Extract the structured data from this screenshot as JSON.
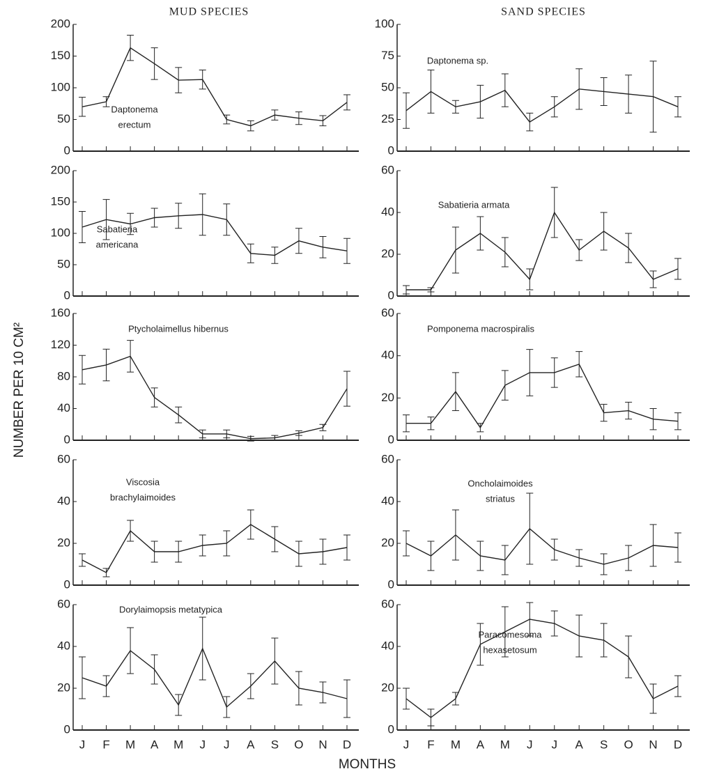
{
  "column_titles": [
    "MUD SPECIES",
    "SAND SPECIES"
  ],
  "y_label": "NUMBER PER 10 CM²",
  "x_label": "MONTHS",
  "chart_data": [
    {
      "type": "line",
      "annotation": [
        "Daptonema",
        "erectum"
      ],
      "color": "#222",
      "categories": [
        null,
        null,
        null,
        null,
        null,
        null,
        null,
        null,
        null,
        null,
        null,
        null
      ],
      "values": [
        70,
        78,
        163,
        138,
        112,
        113,
        50,
        40,
        57,
        52,
        48,
        77
      ],
      "errors": [
        15,
        8,
        20,
        25,
        20,
        15,
        7,
        8,
        8,
        10,
        8,
        12
      ],
      "ylim": [
        0,
        200
      ],
      "yticks": [
        0,
        50,
        100,
        150,
        200
      ]
    },
    {
      "type": "line",
      "annotation": [
        "Sabatieria",
        "americana"
      ],
      "color": "#222",
      "categories": [
        null,
        null,
        null,
        null,
        null,
        null,
        null,
        null,
        null,
        null,
        null,
        null
      ],
      "values": [
        110,
        122,
        115,
        125,
        128,
        130,
        122,
        68,
        65,
        88,
        78,
        72
      ],
      "errors": [
        25,
        32,
        17,
        15,
        20,
        33,
        25,
        15,
        13,
        20,
        17,
        20
      ],
      "ylim": [
        0,
        200
      ],
      "yticks": [
        0,
        50,
        100,
        150,
        200
      ]
    },
    {
      "type": "line",
      "annotation": [
        "Ptycholaimellus hibernus"
      ],
      "color": "#222",
      "categories": [
        null,
        null,
        null,
        null,
        null,
        null,
        null,
        null,
        null,
        null,
        null,
        null
      ],
      "values": [
        89,
        95,
        106,
        54,
        32,
        8,
        8,
        2,
        3,
        9,
        16,
        65
      ],
      "errors": [
        18,
        20,
        20,
        12,
        10,
        5,
        5,
        3,
        3,
        3,
        4,
        22
      ],
      "ylim": [
        0,
        160
      ],
      "yticks": [
        0,
        40,
        80,
        120,
        160
      ]
    },
    {
      "type": "line",
      "annotation": [
        "Viscosia",
        "brachylaimoides"
      ],
      "color": "#222",
      "categories": [
        null,
        null,
        null,
        null,
        null,
        null,
        null,
        null,
        null,
        null,
        null,
        null
      ],
      "values": [
        12,
        6,
        26,
        16,
        16,
        19,
        20,
        29,
        22,
        15,
        16,
        18
      ],
      "errors": [
        3,
        2,
        5,
        5,
        5,
        5,
        6,
        7,
        6,
        6,
        6,
        6
      ],
      "ylim": [
        0,
        60
      ],
      "yticks": [
        0,
        20,
        40,
        60
      ]
    },
    {
      "type": "line",
      "annotation": [
        "Dorylaimopsis metatypica"
      ],
      "color": "#222",
      "categories": [
        "J",
        "F",
        "M",
        "A",
        "M",
        "J",
        "J",
        "A",
        "S",
        "O",
        "N",
        "D"
      ],
      "values": [
        25,
        21,
        38,
        29,
        12,
        39,
        11,
        21,
        33,
        20,
        18,
        15
      ],
      "errors": [
        10,
        5,
        11,
        7,
        5,
        15,
        5,
        6,
        11,
        8,
        5,
        9
      ],
      "ylim": [
        0,
        60
      ],
      "yticks": [
        0,
        20,
        40,
        60
      ]
    },
    {
      "type": "line",
      "annotation": [
        "Daptonema sp."
      ],
      "color": "#222",
      "categories": [
        null,
        null,
        null,
        null,
        null,
        null,
        null,
        null,
        null,
        null,
        null,
        null
      ],
      "values": [
        32,
        47,
        35,
        39,
        48,
        23,
        35,
        49,
        47,
        45,
        43,
        35
      ],
      "errors": [
        14,
        17,
        5,
        13,
        13,
        7,
        8,
        16,
        11,
        15,
        28,
        8
      ],
      "ylim": [
        0,
        100
      ],
      "yticks": [
        0,
        25,
        50,
        75,
        100
      ]
    },
    {
      "type": "line",
      "annotation": [
        "Sabatieria armata"
      ],
      "color": "#222",
      "categories": [
        null,
        null,
        null,
        null,
        null,
        null,
        null,
        null,
        null,
        null,
        null,
        null
      ],
      "values": [
        3,
        3,
        22,
        30,
        21,
        8,
        40,
        22,
        31,
        23,
        8,
        13
      ],
      "errors": [
        2,
        1,
        11,
        8,
        7,
        5,
        12,
        5,
        9,
        7,
        4,
        5
      ],
      "ylim": [
        0,
        60
      ],
      "yticks": [
        0,
        20,
        40,
        60
      ]
    },
    {
      "type": "line",
      "annotation": [
        "Pomponema macrospiralis"
      ],
      "color": "#222",
      "categories": [
        null,
        null,
        null,
        null,
        null,
        null,
        null,
        null,
        null,
        null,
        null,
        null
      ],
      "values": [
        8,
        8,
        23,
        6,
        26,
        32,
        32,
        36,
        13,
        14,
        10,
        9
      ],
      "errors": [
        4,
        3,
        9,
        2,
        7,
        11,
        7,
        6,
        4,
        4,
        5,
        4
      ],
      "ylim": [
        0,
        60
      ],
      "yticks": [
        0,
        20,
        40,
        60
      ]
    },
    {
      "type": "line",
      "annotation": [
        "Oncholaimoides",
        "striatus"
      ],
      "color": "#222",
      "categories": [
        null,
        null,
        null,
        null,
        null,
        null,
        null,
        null,
        null,
        null,
        null,
        null
      ],
      "values": [
        20,
        14,
        24,
        14,
        12,
        27,
        17,
        13,
        10,
        13,
        19,
        18
      ],
      "errors": [
        6,
        7,
        12,
        7,
        7,
        17,
        5,
        4,
        5,
        6,
        10,
        7
      ],
      "ylim": [
        0,
        60
      ],
      "yticks": [
        0,
        20,
        40,
        60
      ]
    },
    {
      "type": "line",
      "annotation": [
        "Paracomesoma",
        "hexasetosum"
      ],
      "color": "#222",
      "categories": [
        "J",
        "F",
        "M",
        "A",
        "M",
        "J",
        "J",
        "A",
        "S",
        "O",
        "N",
        "D"
      ],
      "values": [
        15,
        6,
        15,
        41,
        47,
        53,
        51,
        45,
        43,
        35,
        15,
        21
      ],
      "errors": [
        5,
        4,
        3,
        10,
        12,
        8,
        6,
        10,
        8,
        10,
        7,
        5
      ],
      "ylim": [
        0,
        60
      ],
      "yticks": [
        0,
        20,
        40,
        60
      ]
    }
  ]
}
